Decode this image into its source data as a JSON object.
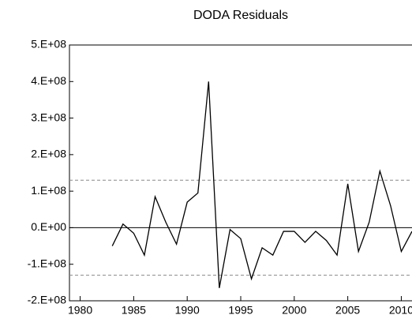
{
  "chart_data": {
    "type": "line",
    "title": "DODA Residuals",
    "x": [
      1983,
      1984,
      1985,
      1986,
      1987,
      1988,
      1989,
      1990,
      1991,
      1992,
      1993,
      1994,
      1995,
      1996,
      1997,
      1998,
      1999,
      2000,
      2001,
      2002,
      2003,
      2004,
      2005,
      2006,
      2007,
      2008,
      2009,
      2010,
      2011
    ],
    "series": [
      {
        "name": "Residuals",
        "color": "#000000",
        "values": [
          -50000000,
          10000000,
          -15000000,
          -75000000,
          85000000,
          15000000,
          -45000000,
          70000000,
          95000000,
          400000000,
          -165000000,
          -5000000,
          -30000000,
          -140000000,
          -55000000,
          -75000000,
          -10000000,
          -10000000,
          -40000000,
          -10000000,
          -35000000,
          -75000000,
          120000000,
          -65000000,
          15000000,
          155000000,
          60000000,
          -65000000,
          -10000000
        ]
      }
    ],
    "xlim": [
      1979,
      2011
    ],
    "xticks": [
      1980,
      1985,
      1990,
      1995,
      2000,
      2005,
      2010
    ],
    "ylim": [
      -200000000,
      500000000
    ],
    "yticks": [
      {
        "value": -200000000,
        "label": "-2.E+08"
      },
      {
        "value": -100000000,
        "label": "-1.E+08"
      },
      {
        "value": 0,
        "label": "0.E+00"
      },
      {
        "value": 100000000,
        "label": "1.E+08"
      },
      {
        "value": 200000000,
        "label": "2.E+08"
      },
      {
        "value": 300000000,
        "label": "3.E+08"
      },
      {
        "value": 400000000,
        "label": "4.E+08"
      },
      {
        "value": 500000000,
        "label": "5.E+08"
      }
    ],
    "band_lines": [
      -130000000,
      130000000
    ],
    "zero_line": true
  }
}
